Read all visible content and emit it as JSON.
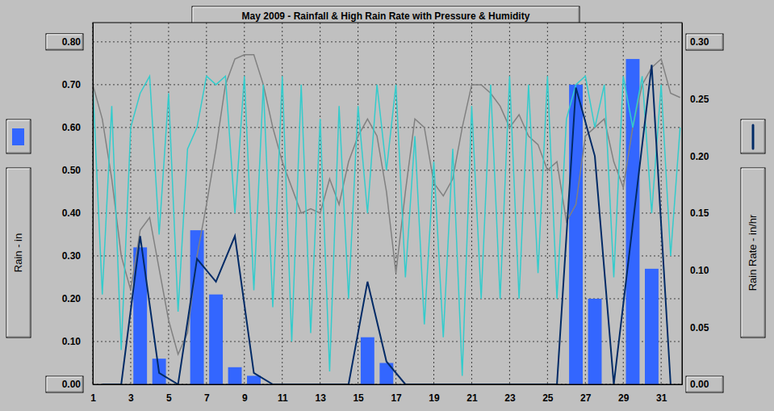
{
  "chart_data": {
    "type": "bar",
    "title": "May 2009 - Rainfall & High Rain Rate with Pressure & Humidity",
    "y_label": "Rain - in",
    "y2_label": "Rain Rate - in/hr",
    "xlim": [
      1,
      32.1
    ],
    "xticks": [
      1,
      3,
      5,
      7,
      9,
      11,
      13,
      15,
      17,
      19,
      21,
      23,
      25,
      27,
      29,
      31
    ],
    "ylim": [
      0,
      0.845
    ],
    "yticks": [
      {
        "value": 0,
        "label": "0.00"
      },
      {
        "value": 0.1,
        "label": "0.10"
      },
      {
        "value": 0.2,
        "label": "0.20"
      },
      {
        "value": 0.3,
        "label": "0.30"
      },
      {
        "value": 0.4,
        "label": "0.40"
      },
      {
        "value": 0.5,
        "label": "0.50"
      },
      {
        "value": 0.6,
        "label": "0.60"
      },
      {
        "value": 0.7,
        "label": "0.70"
      },
      {
        "value": 0.8,
        "label": "0.80"
      }
    ],
    "y2lim": [
      0,
      0.317
    ],
    "y2ticks": [
      {
        "value": 0,
        "label": "0.00"
      },
      {
        "value": 0.05,
        "label": "0.05"
      },
      {
        "value": 0.1,
        "label": "0.10"
      },
      {
        "value": 0.15,
        "label": "0.15"
      },
      {
        "value": 0.2,
        "label": "0.20"
      },
      {
        "value": 0.25,
        "label": "0.25"
      },
      {
        "value": 0.3,
        "label": "0.30"
      }
    ],
    "grid": true,
    "series": [
      {
        "type": "bar",
        "color": "#3366ff",
        "x": [
          1.5,
          2.5,
          3.5,
          4.5,
          5.5,
          6.5,
          7.5,
          8.5,
          9.5,
          10.5,
          11.5,
          12.5,
          13.5,
          14.5,
          15.5,
          16.5,
          17.5,
          18.5,
          19.5,
          20.5,
          21.5,
          22.5,
          23.5,
          24.5,
          25.5,
          26.5,
          27.5,
          28.5,
          29.5,
          30.5,
          31.5
        ],
        "values": [
          0,
          0,
          0.32,
          0.06,
          0,
          0.36,
          0.21,
          0.04,
          0.02,
          0,
          0,
          0,
          0,
          0,
          0.11,
          0.05,
          0,
          0,
          0,
          0,
          0,
          0,
          0,
          0,
          0,
          0.7,
          0.2,
          0,
          0.76,
          0.27,
          0
        ]
      },
      {
        "type": "line",
        "color": "#808080",
        "x": [
          1,
          1.5,
          2,
          2.5,
          3,
          3.5,
          4,
          4.5,
          5,
          5.5,
          6,
          6.5,
          7,
          7.5,
          8,
          8.5,
          9,
          9.5,
          10,
          10.5,
          11,
          11.5,
          12,
          12.5,
          13,
          13.5,
          14,
          14.5,
          15,
          15.5,
          16,
          16.5,
          17,
          17.5,
          18,
          18.5,
          19,
          19.5,
          20,
          20.5,
          21,
          21.5,
          22,
          22.5,
          23,
          23.5,
          24,
          24.5,
          25,
          25.5,
          26,
          26.5,
          27,
          27.5,
          28,
          28.5,
          29,
          29.5,
          30,
          30.5,
          31,
          31.5,
          32
        ],
        "values": [
          0.7,
          0.62,
          0.48,
          0.3,
          0.22,
          0.36,
          0.39,
          0.27,
          0.15,
          0.07,
          0.12,
          0.3,
          0.42,
          0.55,
          0.7,
          0.76,
          0.77,
          0.77,
          0.7,
          0.6,
          0.52,
          0.46,
          0.4,
          0.41,
          0.4,
          0.48,
          0.42,
          0.52,
          0.58,
          0.62,
          0.58,
          0.45,
          0.26,
          0.45,
          0.62,
          0.6,
          0.47,
          0.44,
          0.48,
          0.6,
          0.7,
          0.7,
          0.68,
          0.65,
          0.6,
          0.63,
          0.58,
          0.56,
          0.5,
          0.52,
          0.38,
          0.42,
          0.58,
          0.6,
          0.62,
          0.52,
          0.46,
          0.6,
          0.7,
          0.74,
          0.76,
          0.68,
          0.67
        ]
      },
      {
        "type": "line",
        "color": "#33cccc",
        "x": [
          1,
          1.5,
          2,
          2.5,
          3,
          3.5,
          4,
          4.5,
          5,
          5.5,
          6,
          6.5,
          7,
          7.5,
          8,
          8.5,
          9,
          9.5,
          10,
          10.5,
          11,
          11.5,
          12,
          12.5,
          13,
          13.5,
          14,
          14.5,
          15,
          15.5,
          16,
          16.5,
          17,
          17.5,
          18,
          18.5,
          19,
          19.5,
          20,
          20.5,
          21,
          21.5,
          22,
          22.5,
          23,
          23.5,
          24,
          24.5,
          25,
          25.5,
          26,
          26.5,
          27,
          27.5,
          28,
          28.5,
          29,
          29.5,
          30,
          30.5,
          31,
          31.5,
          32
        ],
        "values": [
          0.7,
          0.21,
          0.65,
          0.08,
          0.6,
          0.68,
          0.72,
          0.35,
          0.68,
          0.17,
          0.55,
          0.6,
          0.72,
          0.7,
          0.72,
          0.4,
          0.72,
          0.22,
          0.7,
          0.18,
          0.72,
          0.1,
          0.7,
          0.12,
          0.62,
          0.03,
          0.65,
          0.2,
          0.65,
          0.4,
          0.7,
          0.5,
          0.7,
          0.25,
          0.58,
          0.14,
          0.52,
          0.11,
          0.55,
          0.02,
          0.65,
          0.2,
          0.7,
          0.2,
          0.72,
          0.2,
          0.7,
          0.26,
          0.72,
          0.2,
          0.62,
          0.7,
          0.72,
          0.6,
          0.7,
          0.25,
          0.72,
          0.6,
          0.72,
          0.4,
          0.7,
          0.3,
          0.6
        ]
      },
      {
        "type": "line",
        "color": "#002a66",
        "axis": "y2",
        "x": [
          1.5,
          2.5,
          3.5,
          4.5,
          5.5,
          6.5,
          7.5,
          8.5,
          9.5,
          10.5,
          11.5,
          12.5,
          13.5,
          14.5,
          15.5,
          16.5,
          17.5,
          18.5,
          19.5,
          20.5,
          21.5,
          22.5,
          23.5,
          24.5,
          25.5,
          26.5,
          27.5,
          28.5,
          29.5,
          30.5,
          31.5
        ],
        "values": [
          0,
          0,
          0.13,
          0.01,
          0,
          0.11,
          0.09,
          0.13,
          0.01,
          0,
          0,
          0,
          0,
          0,
          0.09,
          0.02,
          0,
          0,
          0,
          0,
          0,
          0,
          0,
          0,
          0,
          0.26,
          0.2,
          0,
          0.14,
          0.28,
          0
        ]
      }
    ]
  }
}
